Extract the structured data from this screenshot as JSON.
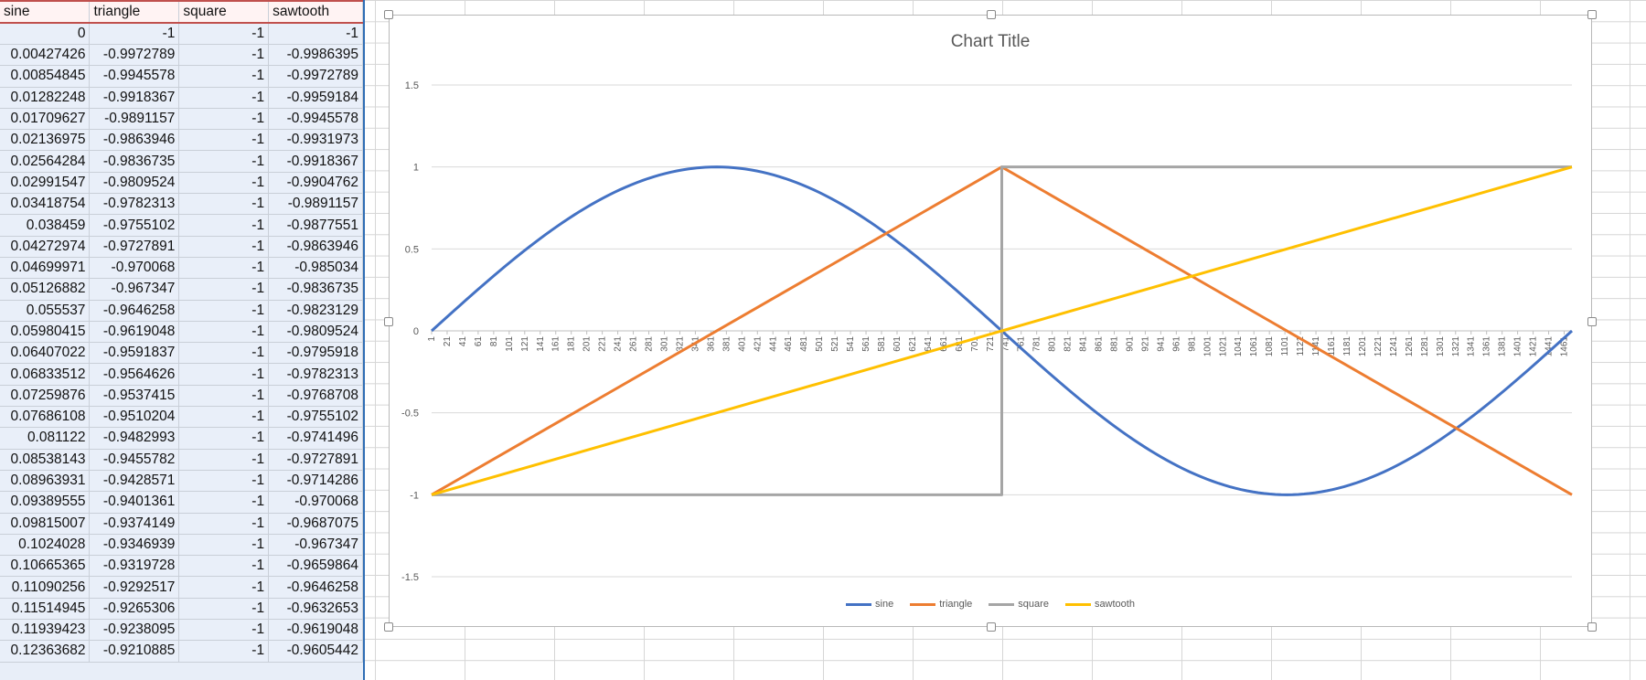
{
  "sheet": {
    "headers": [
      "sine",
      "triangle",
      "square",
      "sawtooth"
    ],
    "rows": [
      [
        "0",
        "-1",
        "-1",
        "-1"
      ],
      [
        "0.00427426",
        "-0.9972789",
        "-1",
        "-0.9986395"
      ],
      [
        "0.00854845",
        "-0.9945578",
        "-1",
        "-0.9972789"
      ],
      [
        "0.01282248",
        "-0.9918367",
        "-1",
        "-0.9959184"
      ],
      [
        "0.01709627",
        "-0.9891157",
        "-1",
        "-0.9945578"
      ],
      [
        "0.02136975",
        "-0.9863946",
        "-1",
        "-0.9931973"
      ],
      [
        "0.02564284",
        "-0.9836735",
        "-1",
        "-0.9918367"
      ],
      [
        "0.02991547",
        "-0.9809524",
        "-1",
        "-0.9904762"
      ],
      [
        "0.03418754",
        "-0.9782313",
        "-1",
        "-0.9891157"
      ],
      [
        "0.038459",
        "-0.9755102",
        "-1",
        "-0.9877551"
      ],
      [
        "0.04272974",
        "-0.9727891",
        "-1",
        "-0.9863946"
      ],
      [
        "0.04699971",
        "-0.970068",
        "-1",
        "-0.985034"
      ],
      [
        "0.05126882",
        "-0.967347",
        "-1",
        "-0.9836735"
      ],
      [
        "0.055537",
        "-0.9646258",
        "-1",
        "-0.9823129"
      ],
      [
        "0.05980415",
        "-0.9619048",
        "-1",
        "-0.9809524"
      ],
      [
        "0.06407022",
        "-0.9591837",
        "-1",
        "-0.9795918"
      ],
      [
        "0.06833512",
        "-0.9564626",
        "-1",
        "-0.9782313"
      ],
      [
        "0.07259876",
        "-0.9537415",
        "-1",
        "-0.9768708"
      ],
      [
        "0.07686108",
        "-0.9510204",
        "-1",
        "-0.9755102"
      ],
      [
        "0.081122",
        "-0.9482993",
        "-1",
        "-0.9741496"
      ],
      [
        "0.08538143",
        "-0.9455782",
        "-1",
        "-0.9727891"
      ],
      [
        "0.08963931",
        "-0.9428571",
        "-1",
        "-0.9714286"
      ],
      [
        "0.09389555",
        "-0.9401361",
        "-1",
        "-0.970068"
      ],
      [
        "0.09815007",
        "-0.9374149",
        "-1",
        "-0.9687075"
      ],
      [
        "0.1024028",
        "-0.9346939",
        "-1",
        "-0.967347"
      ],
      [
        "0.10665365",
        "-0.9319728",
        "-1",
        "-0.9659864"
      ],
      [
        "0.11090256",
        "-0.9292517",
        "-1",
        "-0.9646258"
      ],
      [
        "0.11514945",
        "-0.9265306",
        "-1",
        "-0.9632653"
      ],
      [
        "0.11939423",
        "-0.9238095",
        "-1",
        "-0.9619048"
      ],
      [
        "0.12363682",
        "-0.9210885",
        "-1",
        "-0.9605442"
      ]
    ]
  },
  "chart_data": {
    "type": "line",
    "title": "Chart Title",
    "xlabel": "",
    "ylabel": "",
    "ylim": [
      -1.5,
      1.5
    ],
    "yticks": [
      "1.5",
      "1",
      "0.5",
      "0",
      "-0.5",
      "-1",
      "-1.5"
    ],
    "x_range": [
      1,
      1471
    ],
    "x_tick_labels": [
      "1",
      "21",
      "41",
      "61",
      "81",
      "101",
      "121",
      "141",
      "161",
      "181",
      "201",
      "221",
      "241",
      "261",
      "281",
      "301",
      "321",
      "341",
      "361",
      "381",
      "401",
      "421",
      "441",
      "461",
      "481",
      "501",
      "521",
      "541",
      "561",
      "581",
      "601",
      "621",
      "641",
      "661",
      "681",
      "701",
      "721",
      "741",
      "761",
      "781",
      "801",
      "821",
      "841",
      "861",
      "881",
      "901",
      "921",
      "941",
      "961",
      "981",
      "1001",
      "1021",
      "1041",
      "1061",
      "1081",
      "1101",
      "1121",
      "1141",
      "1161",
      "1181",
      "1201",
      "1221",
      "1241",
      "1261",
      "1281",
      "1301",
      "1321",
      "1341",
      "1361",
      "1381",
      "1401",
      "1421",
      "1441",
      "1461"
    ],
    "grid": true,
    "legend_position": "bottom",
    "series": [
      {
        "name": "sine",
        "color": "#4472c4",
        "points": [
          [
            1,
            0
          ],
          [
            184,
            0.707
          ],
          [
            368,
            1
          ],
          [
            552,
            0.707
          ],
          [
            736,
            0
          ],
          [
            920,
            -0.707
          ],
          [
            1104,
            -1
          ],
          [
            1288,
            -0.707
          ],
          [
            1471,
            0
          ]
        ]
      },
      {
        "name": "triangle",
        "color": "#ed7d31",
        "points": [
          [
            1,
            -1
          ],
          [
            736,
            1
          ],
          [
            1471,
            -1
          ]
        ]
      },
      {
        "name": "square",
        "color": "#a5a5a5",
        "points": [
          [
            1,
            -1
          ],
          [
            736,
            -1
          ],
          [
            736,
            1
          ],
          [
            1471,
            1
          ]
        ]
      },
      {
        "name": "sawtooth",
        "color": "#ffc000",
        "points": [
          [
            1,
            -1
          ],
          [
            1471,
            1
          ]
        ]
      }
    ]
  }
}
